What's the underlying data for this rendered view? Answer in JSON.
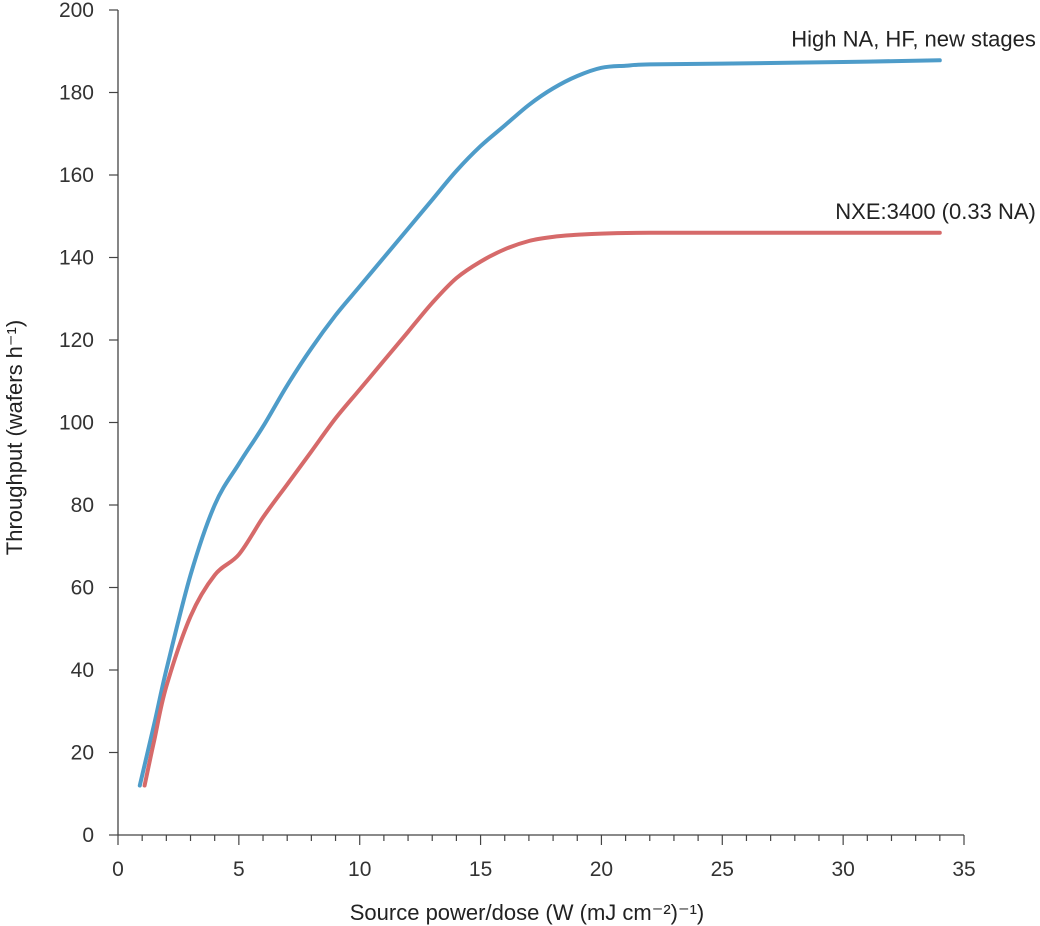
{
  "chart_data": {
    "type": "line",
    "xlabel": "Source power/dose (W (mJ cm⁻²)⁻¹)",
    "ylabel": "Throughput (wafers h⁻¹)",
    "xlim": [
      0,
      35
    ],
    "ylim": [
      0,
      200
    ],
    "x_major_ticks": [
      0,
      5,
      10,
      15,
      20,
      25,
      30,
      35
    ],
    "x_minor_step": 1,
    "y_ticks": [
      0,
      20,
      40,
      60,
      80,
      100,
      120,
      140,
      160,
      180,
      200
    ],
    "grid": false,
    "series": [
      {
        "name": "High NA, HF, new stages",
        "color": "#4e9cc9",
        "points": [
          [
            0.9,
            12
          ],
          [
            1.5,
            27
          ],
          [
            2,
            40
          ],
          [
            3,
            63
          ],
          [
            4,
            80
          ],
          [
            5,
            90
          ],
          [
            6,
            99
          ],
          [
            7,
            109
          ],
          [
            8,
            118
          ],
          [
            9,
            126
          ],
          [
            10,
            133
          ],
          [
            11,
            140
          ],
          [
            12,
            147
          ],
          [
            13,
            154
          ],
          [
            14,
            161
          ],
          [
            15,
            167
          ],
          [
            16,
            172
          ],
          [
            17,
            177
          ],
          [
            18,
            181
          ],
          [
            19,
            184
          ],
          [
            20,
            186
          ],
          [
            21,
            186.5
          ],
          [
            22,
            186.8
          ],
          [
            25,
            187
          ],
          [
            30,
            187.4
          ],
          [
            34,
            187.8
          ]
        ]
      },
      {
        "name": "NXE:3400 (0.33 NA)",
        "color": "#d66a6a",
        "points": [
          [
            1.1,
            12
          ],
          [
            1.5,
            23
          ],
          [
            2,
            36
          ],
          [
            3,
            53
          ],
          [
            4,
            63
          ],
          [
            5,
            68
          ],
          [
            6,
            77
          ],
          [
            7,
            85
          ],
          [
            8,
            93
          ],
          [
            9,
            101
          ],
          [
            10,
            108
          ],
          [
            11,
            115
          ],
          [
            12,
            122
          ],
          [
            13,
            129
          ],
          [
            14,
            135
          ],
          [
            15,
            139
          ],
          [
            16,
            142
          ],
          [
            17,
            144
          ],
          [
            18,
            145
          ],
          [
            19,
            145.5
          ],
          [
            20,
            145.8
          ],
          [
            22,
            146
          ],
          [
            25,
            146
          ],
          [
            30,
            146
          ],
          [
            34,
            146
          ]
        ]
      }
    ]
  }
}
